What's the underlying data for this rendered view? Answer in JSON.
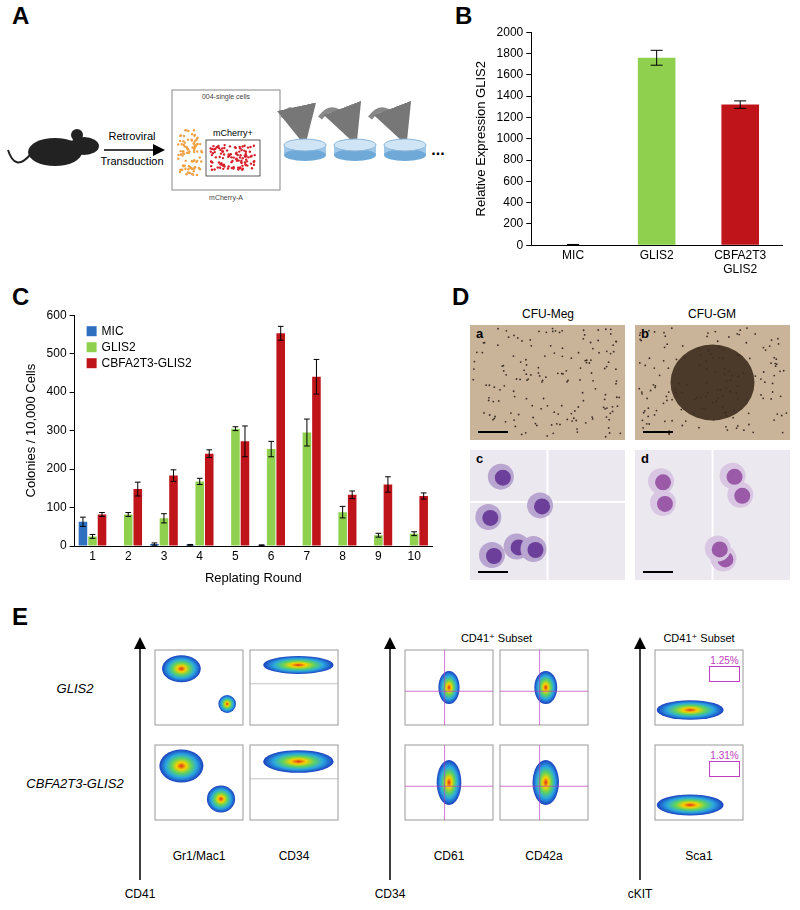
{
  "panel_labels": [
    "A",
    "B",
    "C",
    "D",
    "E"
  ],
  "panel_A": {
    "transduction_label": [
      "Retroviral",
      "Transduction"
    ],
    "plot_title": "004-single cells",
    "plot_x_label": "mCherry-A",
    "gate_label": "mCherry+",
    "continuation": "..."
  },
  "chart_data": [
    {
      "type": "bar",
      "y_label": "Relative Expression GLIS2",
      "categories": [
        "MIC",
        "GLIS2",
        [
          "CBFA2T3",
          "GLIS2"
        ]
      ],
      "values": [
        5,
        1760,
        1320
      ],
      "errors": [
        2,
        70,
        35
      ],
      "colors": [
        "#2e6fc0",
        "#8fd14f",
        "#c0141b"
      ],
      "ylim": [
        0,
        2000
      ],
      "yticks": [
        0,
        200,
        400,
        600,
        800,
        1000,
        1200,
        1400,
        1600,
        1800,
        2000
      ],
      "grid": false
    },
    {
      "type": "bar",
      "x_label": "Replating Round",
      "y_label": "Colonies / 10,000 Cells",
      "categories": [
        "1",
        "2",
        "3",
        "4",
        "5",
        "6",
        "7",
        "8",
        "9",
        "10"
      ],
      "series": [
        {
          "name": "MIC",
          "color": "#2e6fc0",
          "values": [
            63,
            0,
            5,
            3,
            0,
            2,
            0,
            0,
            0,
            0
          ],
          "errors": [
            12,
            0,
            3,
            1,
            0,
            1,
            0,
            0,
            0,
            0
          ]
        },
        {
          "name": "GLIS2",
          "color": "#8fd14f",
          "values": [
            25,
            82,
            72,
            168,
            305,
            252,
            295,
            88,
            28,
            32
          ],
          "errors": [
            5,
            5,
            12,
            8,
            5,
            20,
            35,
            15,
            5,
            5
          ]
        },
        {
          "name": "CBFA2T3-GLIS2",
          "color": "#c0141b",
          "values": [
            82,
            148,
            183,
            240,
            272,
            553,
            440,
            133,
            160,
            130
          ],
          "errors": [
            5,
            18,
            15,
            10,
            40,
            18,
            45,
            10,
            20,
            8
          ]
        }
      ],
      "ylim": [
        0,
        600
      ],
      "yticks": [
        0,
        100,
        200,
        300,
        400,
        500,
        600
      ],
      "grid": false,
      "legend": "upper left"
    }
  ],
  "panel_D": {
    "titles": [
      "CFU-Meg",
      "CFU-GM"
    ],
    "image_labels": [
      "a",
      "b",
      "c",
      "d"
    ]
  },
  "panel_E": {
    "rows": [
      "GLIS2",
      "CBFA2T3-GLIS2"
    ],
    "groups": [
      {
        "y_label": "CD41",
        "x_labels": [
          "Gr1/Mac1",
          "CD34"
        ]
      },
      {
        "header": "CD41⁺ Subset",
        "y_label": "CD34",
        "x_labels": [
          "CD61",
          "CD42a"
        ]
      },
      {
        "header": "CD41⁺ Subset",
        "y_label": "cKIT",
        "x_labels": [
          "Sca1"
        ],
        "gate_values": [
          "1.25%",
          "1.31%"
        ]
      }
    ]
  }
}
